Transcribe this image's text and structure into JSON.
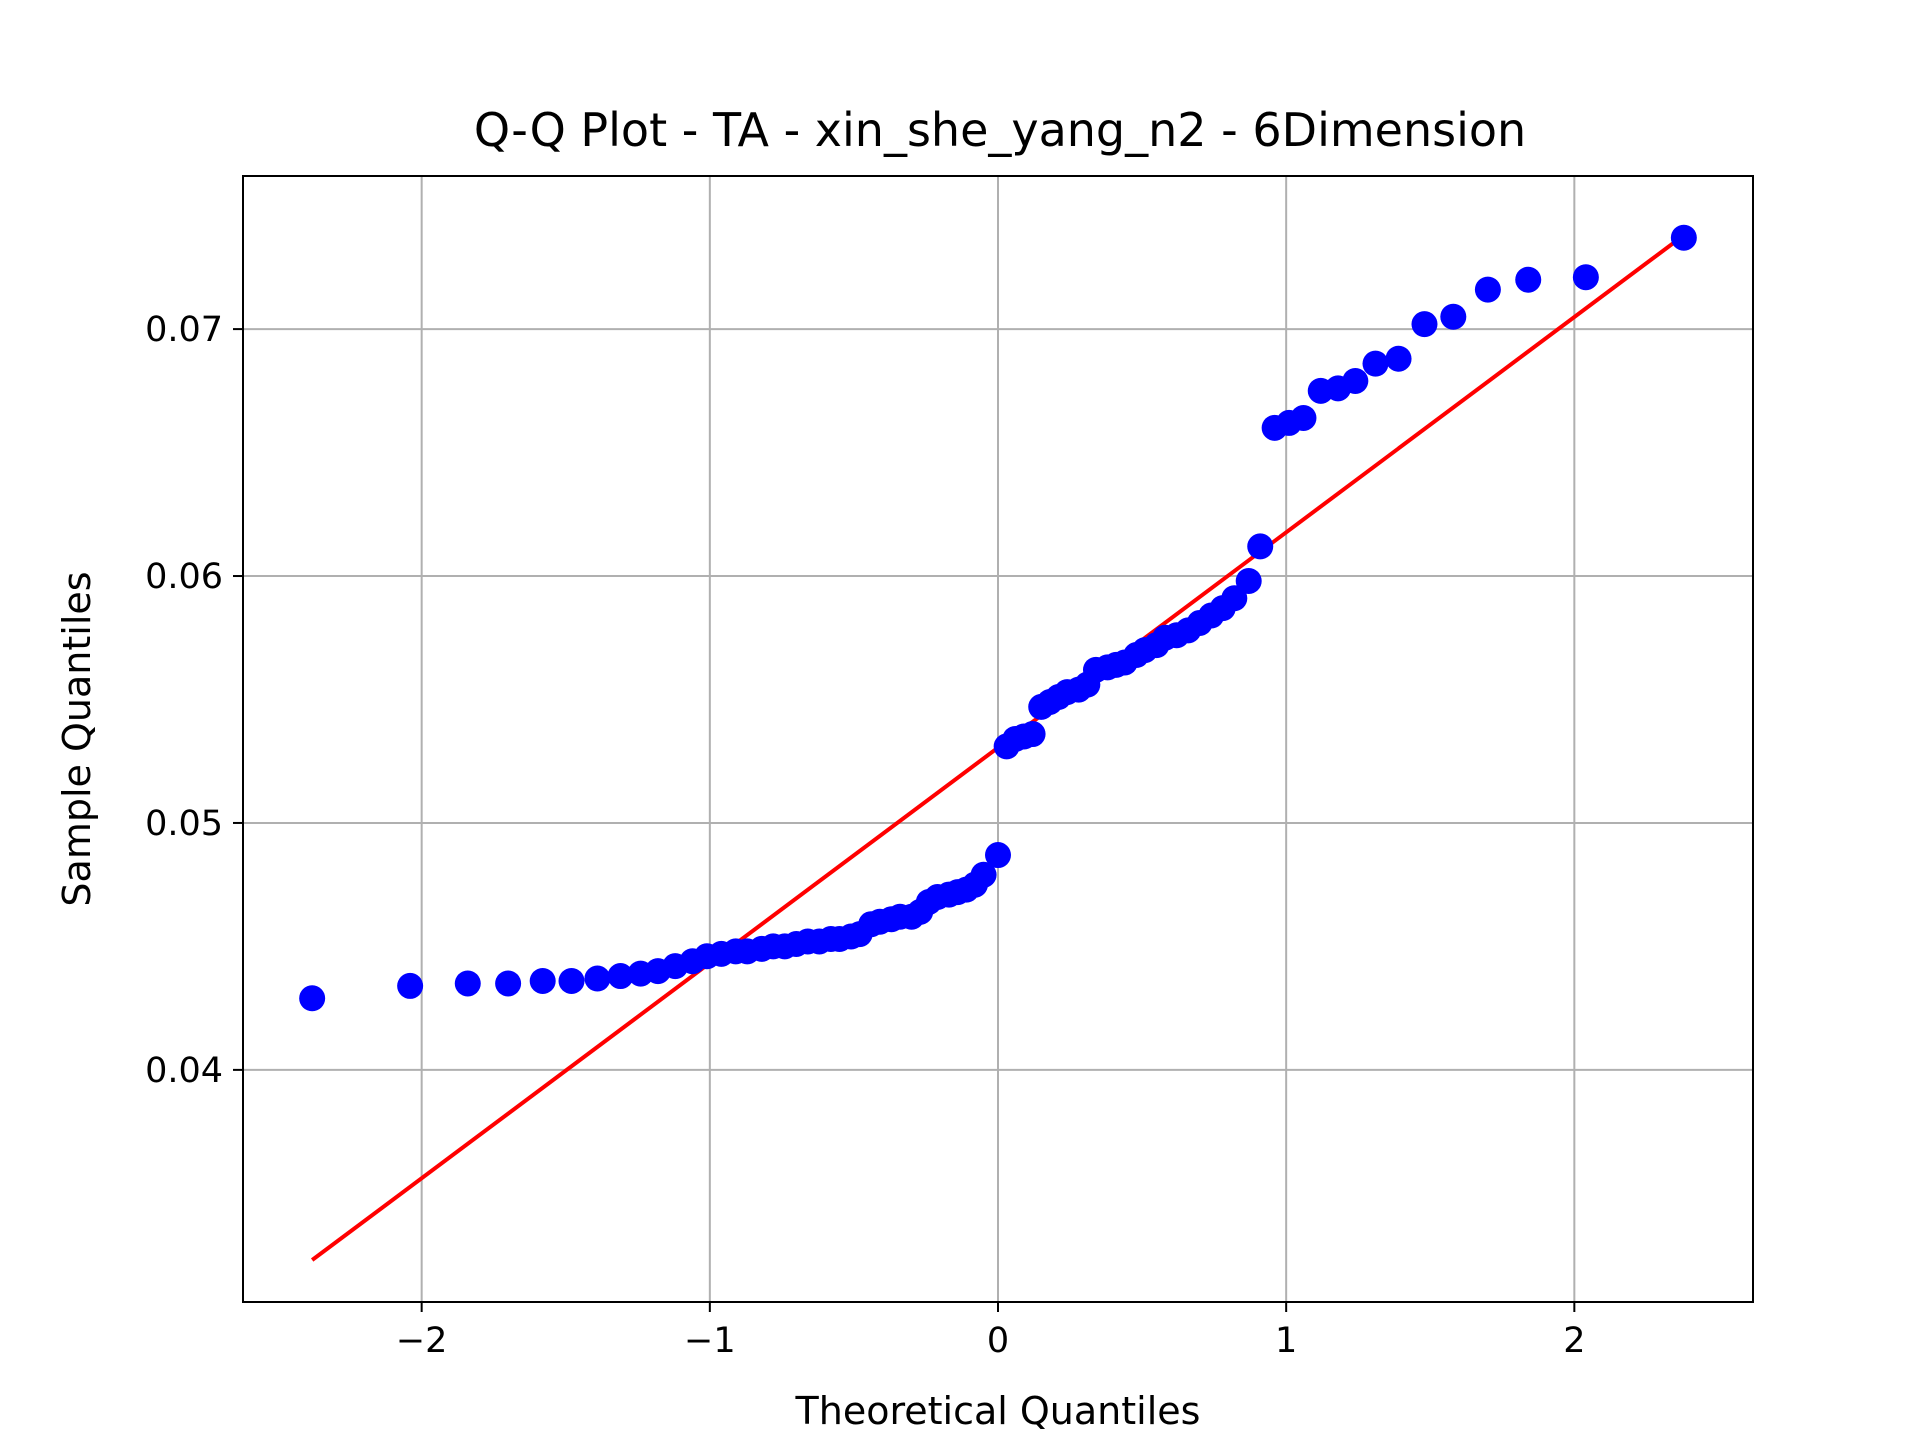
{
  "chart_data": {
    "type": "scatter",
    "title": "Q-Q Plot - TA - xin_she_yang_n2 - 6Dimension",
    "xlabel": "Theoretical Quantiles",
    "ylabel": "Sample Quantiles",
    "xlim": [
      -2.62,
      2.62
    ],
    "ylim": [
      0.0306,
      0.0762
    ],
    "grid": true,
    "xticks": [
      -2,
      -1,
      0,
      1,
      2
    ],
    "xtick_labels": [
      "−2",
      "−1",
      "0",
      "1",
      "2"
    ],
    "yticks": [
      0.04,
      0.05,
      0.06,
      0.07
    ],
    "ytick_labels": [
      "0.04",
      "0.05",
      "0.06",
      "0.07"
    ],
    "colors": {
      "points": "#0000ff",
      "line": "#ff0000",
      "grid": "#b0b0b0"
    },
    "series": [
      {
        "points": [
          [
            -2.38,
            0.0429
          ],
          [
            -2.04,
            0.0434
          ],
          [
            -1.84,
            0.0435
          ],
          [
            -1.7,
            0.0435
          ],
          [
            -1.58,
            0.0436
          ],
          [
            -1.48,
            0.0436
          ],
          [
            -1.39,
            0.0437
          ],
          [
            -1.31,
            0.0438
          ],
          [
            -1.24,
            0.0439
          ],
          [
            -1.18,
            0.044
          ],
          [
            -1.12,
            0.0442
          ],
          [
            -1.06,
            0.0444
          ],
          [
            -1.01,
            0.0446
          ],
          [
            -0.96,
            0.0447
          ],
          [
            -0.91,
            0.0448
          ],
          [
            -0.87,
            0.0448
          ],
          [
            -0.82,
            0.0449
          ],
          [
            -0.78,
            0.045
          ],
          [
            -0.74,
            0.045
          ],
          [
            -0.7,
            0.0451
          ],
          [
            -0.66,
            0.0452
          ],
          [
            -0.62,
            0.0452
          ],
          [
            -0.58,
            0.0453
          ],
          [
            -0.55,
            0.0453
          ],
          [
            -0.51,
            0.0454
          ],
          [
            -0.48,
            0.0455
          ],
          [
            -0.44,
            0.0459
          ],
          [
            -0.41,
            0.046
          ],
          [
            -0.37,
            0.0461
          ],
          [
            -0.34,
            0.0462
          ],
          [
            -0.3,
            0.0462
          ],
          [
            -0.27,
            0.0464
          ],
          [
            -0.24,
            0.0468
          ],
          [
            -0.21,
            0.047
          ],
          [
            -0.17,
            0.0471
          ],
          [
            -0.14,
            0.0472
          ],
          [
            -0.11,
            0.0473
          ],
          [
            -0.08,
            0.0475
          ],
          [
            -0.05,
            0.0479
          ],
          [
            0.0,
            0.0487
          ],
          [
            0.03,
            0.0531
          ],
          [
            0.06,
            0.0534
          ],
          [
            0.09,
            0.0535
          ],
          [
            0.12,
            0.0536
          ],
          [
            0.15,
            0.0547
          ],
          [
            0.18,
            0.0549
          ],
          [
            0.21,
            0.0551
          ],
          [
            0.24,
            0.0553
          ],
          [
            0.28,
            0.0554
          ],
          [
            0.31,
            0.0556
          ],
          [
            0.34,
            0.0562
          ],
          [
            0.38,
            0.0563
          ],
          [
            0.41,
            0.0564
          ],
          [
            0.44,
            0.0565
          ],
          [
            0.48,
            0.0568
          ],
          [
            0.51,
            0.057
          ],
          [
            0.55,
            0.0572
          ],
          [
            0.58,
            0.0575
          ],
          [
            0.62,
            0.0576
          ],
          [
            0.66,
            0.0578
          ],
          [
            0.7,
            0.0581
          ],
          [
            0.74,
            0.0584
          ],
          [
            0.78,
            0.0587
          ],
          [
            0.82,
            0.0591
          ],
          [
            0.87,
            0.0598
          ],
          [
            0.91,
            0.0612
          ],
          [
            0.96,
            0.066
          ],
          [
            1.01,
            0.0662
          ],
          [
            1.06,
            0.0664
          ],
          [
            1.12,
            0.0675
          ],
          [
            1.18,
            0.0676
          ],
          [
            1.24,
            0.0679
          ],
          [
            1.31,
            0.0686
          ],
          [
            1.39,
            0.0688
          ],
          [
            1.48,
            0.0702
          ],
          [
            1.58,
            0.0705
          ],
          [
            1.7,
            0.0716
          ],
          [
            1.84,
            0.072
          ],
          [
            2.04,
            0.0721
          ],
          [
            2.38,
            0.0737
          ]
        ]
      }
    ],
    "reference_line": {
      "x": [
        -2.38,
        2.38
      ],
      "y": [
        0.0323,
        0.0738
      ]
    }
  }
}
